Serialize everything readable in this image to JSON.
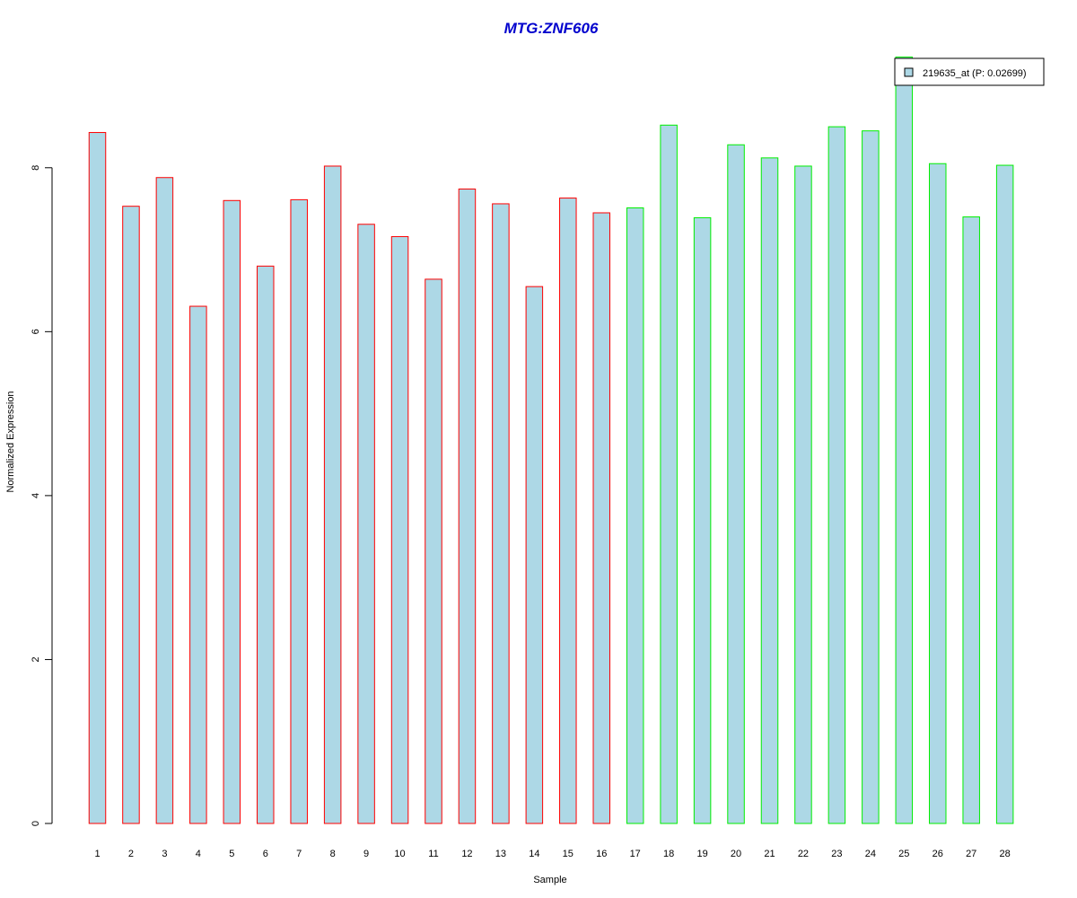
{
  "chart_data": {
    "type": "bar",
    "title": "MTG:ZNF606",
    "xlabel": "Sample",
    "ylabel": "Normalized Expression",
    "ylim": [
      0,
      9.4
    ],
    "yticks": [
      0,
      2,
      4,
      6,
      8
    ],
    "categories": [
      "1",
      "2",
      "3",
      "4",
      "5",
      "6",
      "7",
      "8",
      "9",
      "10",
      "11",
      "12",
      "13",
      "14",
      "15",
      "16",
      "17",
      "18",
      "19",
      "20",
      "21",
      "22",
      "23",
      "24",
      "25",
      "26",
      "27",
      "28"
    ],
    "series": [
      {
        "name": "219635_at (P: 0.02699)",
        "values": [
          8.43,
          7.53,
          7.88,
          6.31,
          7.6,
          6.8,
          7.61,
          8.02,
          7.31,
          7.16,
          6.64,
          7.74,
          7.56,
          6.55,
          7.63,
          7.45,
          7.51,
          8.52,
          7.39,
          8.28,
          8.12,
          8.02,
          8.5,
          8.45,
          9.35,
          8.05,
          7.4,
          8.03
        ]
      }
    ],
    "group_colors": {
      "group1": "#ff0000",
      "group2": "#00ee00"
    },
    "group_split_index": 16,
    "bar_fill": "#add8e6",
    "title_color": "#0000cd",
    "legend_position": "top-right",
    "grid": false
  }
}
